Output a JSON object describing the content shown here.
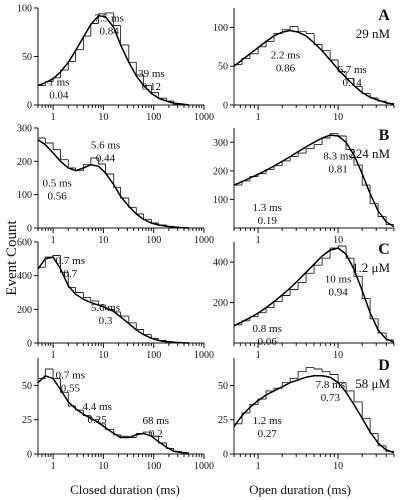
{
  "figure": {
    "ylabel": "Event Count",
    "xlabels": [
      "Closed duration (ms)",
      "Open duration (ms)"
    ]
  },
  "chart_data": [
    {
      "id": "A-closed",
      "type": "histogram",
      "panel": "A",
      "column": "closed",
      "xscale": "log",
      "xlim": [
        0.5,
        1000
      ],
      "ylim": [
        0,
        100
      ],
      "xticks": [
        {
          "value": 1,
          "label": "1"
        },
        {
          "value": 10,
          "label": "10"
        },
        {
          "value": 100,
          "label": "100"
        },
        {
          "value": 1000,
          "label": "1000"
        }
      ],
      "yticks": [
        {
          "value": 0,
          "label": "0"
        },
        {
          "value": 50,
          "label": "50"
        },
        {
          "value": 100,
          "label": "100"
        }
      ],
      "hist": {
        "x": [
          0.5,
          0.7,
          1,
          1.4,
          2,
          2.8,
          4,
          5.6,
          8,
          11,
          16,
          22,
          32,
          45,
          63,
          90,
          125,
          180,
          250,
          360,
          500
        ],
        "y": [
          20,
          24,
          28,
          36,
          45,
          57,
          71,
          84,
          94,
          95,
          82,
          62,
          44,
          31,
          20,
          13,
          7,
          4,
          1,
          0
        ]
      },
      "fit": {
        "x": [
          0.5,
          0.7,
          1,
          1.4,
          2,
          2.8,
          4,
          5.6,
          8,
          11,
          16,
          22,
          32,
          45,
          63,
          90,
          125,
          180,
          250,
          360,
          500
        ],
        "y": [
          20,
          23,
          27,
          34,
          44,
          56,
          70,
          83,
          92,
          91,
          80,
          62,
          44,
          30,
          20,
          12,
          7,
          4,
          2,
          1,
          0
        ]
      },
      "annotations": [
        {
          "lines": [
            "7.5 ms",
            "0.84"
          ],
          "x": 13,
          "y": 86
        },
        {
          "lines": [
            "1 ms",
            "0.04"
          ],
          "x": 1.3,
          "y": 20
        },
        {
          "lines": [
            "39 ms",
            "0.12"
          ],
          "x": 90,
          "y": 29
        }
      ]
    },
    {
      "id": "A-open",
      "type": "histogram",
      "panel": "A",
      "column": "open",
      "xscale": "log",
      "xlim": [
        0.5,
        50
      ],
      "ylim": [
        0,
        125
      ],
      "xticks": [
        {
          "value": 1,
          "label": "1"
        },
        {
          "value": 10,
          "label": "10"
        }
      ],
      "yticks": [
        {
          "value": 0,
          "label": "0"
        },
        {
          "value": 50,
          "label": "50"
        },
        {
          "value": 100,
          "label": "100"
        }
      ],
      "hist": {
        "x": [
          0.5,
          0.63,
          0.79,
          1,
          1.26,
          1.58,
          2,
          2.51,
          3.16,
          3.98,
          5.01,
          6.31,
          7.94,
          10,
          12.6,
          15.8,
          20,
          25.1,
          31.6,
          39.8,
          50
        ],
        "y": [
          52,
          60,
          66,
          75,
          82,
          92,
          97,
          101,
          95,
          92,
          78,
          70,
          58,
          43,
          34,
          24,
          15,
          9,
          5,
          2
        ]
      },
      "fit": {
        "x": [
          0.5,
          0.63,
          0.79,
          1,
          1.26,
          1.58,
          2,
          2.51,
          3.16,
          3.98,
          5.01,
          6.31,
          7.94,
          10,
          12.6,
          15.8,
          20,
          25.1,
          31.6,
          39.8,
          50
        ],
        "y": [
          50,
          58,
          66,
          74,
          82,
          89,
          94,
          96,
          94,
          89,
          80,
          70,
          58,
          46,
          35,
          25,
          16,
          10,
          6,
          3,
          1
        ]
      },
      "annotations": [
        {
          "lines": [
            "2.2 ms",
            "0.86"
          ],
          "x": 2.2,
          "y": 60
        },
        {
          "lines": [
            "6.7 ms",
            "0.14"
          ],
          "x": 15,
          "y": 41
        }
      ],
      "panel_label": "A",
      "concentration": "29 nM"
    },
    {
      "id": "B-closed",
      "type": "histogram",
      "panel": "B",
      "column": "closed",
      "xscale": "log",
      "xlim": [
        0.5,
        1000
      ],
      "ylim": [
        0,
        300
      ],
      "xticks": [
        {
          "value": 1,
          "label": "1"
        },
        {
          "value": 10,
          "label": "10"
        },
        {
          "value": 100,
          "label": "100"
        },
        {
          "value": 1000,
          "label": "1000"
        }
      ],
      "yticks": [
        {
          "value": 0,
          "label": "0"
        },
        {
          "value": 100,
          "label": "100"
        },
        {
          "value": 200,
          "label": "200"
        },
        {
          "value": 300,
          "label": "300"
        }
      ],
      "hist": {
        "x": [
          0.5,
          0.7,
          1,
          1.4,
          2,
          2.8,
          4,
          5.6,
          8,
          11,
          16,
          22,
          32,
          45,
          63,
          90,
          125,
          180,
          250,
          360,
          500
        ],
        "y": [
          270,
          255,
          235,
          205,
          180,
          172,
          190,
          210,
          192,
          162,
          122,
          90,
          62,
          42,
          26,
          15,
          9,
          5,
          2,
          1
        ]
      },
      "fit": {
        "x": [
          0.5,
          0.7,
          1,
          1.4,
          2,
          2.8,
          4,
          5.6,
          8,
          11,
          16,
          22,
          32,
          45,
          63,
          90,
          125,
          180,
          250,
          360,
          500
        ],
        "y": [
          265,
          250,
          225,
          200,
          180,
          172,
          180,
          190,
          185,
          165,
          130,
          95,
          65,
          42,
          26,
          15,
          9,
          5,
          3,
          1,
          0
        ]
      },
      "annotations": [
        {
          "lines": [
            "5.6 ms",
            "0.44"
          ],
          "x": 11,
          "y": 238
        },
        {
          "lines": [
            "0.5 ms",
            "0.56"
          ],
          "x": 1.2,
          "y": 125
        }
      ]
    },
    {
      "id": "B-open",
      "type": "histogram",
      "panel": "B",
      "column": "open",
      "xscale": "log",
      "xlim": [
        0.5,
        50
      ],
      "ylim": [
        0,
        350
      ],
      "xticks": [
        {
          "value": 1,
          "label": "1"
        },
        {
          "value": 10,
          "label": "10"
        }
      ],
      "yticks": [
        {
          "value": 100,
          "label": "100"
        },
        {
          "value": 200,
          "label": "200"
        },
        {
          "value": 300,
          "label": "300"
        }
      ],
      "hist": {
        "x": [
          0.5,
          0.63,
          0.79,
          1,
          1.26,
          1.58,
          2,
          2.51,
          3.16,
          3.98,
          5.01,
          6.31,
          7.94,
          10,
          12.6,
          15.8,
          20,
          25.1,
          31.6,
          39.8,
          50
        ],
        "y": [
          150,
          165,
          180,
          190,
          205,
          218,
          235,
          250,
          262,
          278,
          292,
          315,
          330,
          322,
          275,
          220,
          150,
          85,
          40,
          12
        ]
      },
      "fit": {
        "x": [
          0.5,
          0.63,
          0.79,
          1,
          1.26,
          1.58,
          2,
          2.51,
          3.16,
          3.98,
          5.01,
          6.31,
          7.94,
          10,
          12.6,
          15.8,
          20,
          25.1,
          31.6,
          39.8,
          50
        ],
        "y": [
          150,
          162,
          175,
          188,
          202,
          217,
          233,
          250,
          267,
          284,
          300,
          315,
          325,
          322,
          300,
          255,
          190,
          120,
          60,
          22,
          5
        ]
      },
      "annotations": [
        {
          "lines": [
            "8.3 ms",
            "0.81"
          ],
          "x": 10,
          "y": 240
        },
        {
          "lines": [
            "1.3 ms",
            "0.19"
          ],
          "x": 1.3,
          "y": 60
        }
      ],
      "panel_label": "B",
      "concentration": "224 nM"
    },
    {
      "id": "C-closed",
      "type": "histogram",
      "panel": "C",
      "column": "closed",
      "xscale": "log",
      "xlim": [
        0.5,
        1000
      ],
      "ylim": [
        0,
        600
      ],
      "xticks": [
        {
          "value": 1,
          "label": "1"
        },
        {
          "value": 10,
          "label": "10"
        },
        {
          "value": 100,
          "label": "100"
        },
        {
          "value": 1000,
          "label": "1000"
        }
      ],
      "yticks": [
        {
          "value": 0,
          "label": "0"
        },
        {
          "value": 200,
          "label": "200"
        },
        {
          "value": 400,
          "label": "400"
        },
        {
          "value": 600,
          "label": "600"
        }
      ],
      "hist": {
        "x": [
          0.5,
          0.7,
          1,
          1.4,
          2,
          2.8,
          4,
          5.6,
          8,
          11,
          16,
          22,
          32,
          45,
          63,
          90,
          125,
          180,
          250,
          360,
          500
        ],
        "y": [
          450,
          510,
          520,
          420,
          330,
          300,
          270,
          250,
          225,
          200,
          185,
          160,
          120,
          80,
          50,
          28,
          15,
          8,
          3,
          1
        ]
      },
      "fit": {
        "x": [
          0.5,
          0.7,
          1,
          1.4,
          2,
          2.8,
          4,
          5.6,
          8,
          11,
          16,
          22,
          32,
          45,
          63,
          90,
          125,
          180,
          250,
          360,
          500
        ],
        "y": [
          440,
          500,
          510,
          440,
          340,
          290,
          260,
          240,
          225,
          210,
          188,
          155,
          115,
          78,
          50,
          28,
          15,
          8,
          4,
          1,
          0
        ]
      },
      "annotations": [
        {
          "lines": [
            "0.7 ms",
            "0.7"
          ],
          "x": 2.2,
          "y": 470
        },
        {
          "lines": [
            "5.6 ms",
            "0.3"
          ],
          "x": 11,
          "y": 190
        }
      ]
    },
    {
      "id": "C-open",
      "type": "histogram",
      "panel": "C",
      "column": "open",
      "xscale": "log",
      "xlim": [
        0.5,
        50
      ],
      "ylim": [
        0,
        500
      ],
      "xticks": [
        {
          "value": 1,
          "label": "1"
        },
        {
          "value": 10,
          "label": "10"
        }
      ],
      "yticks": [
        {
          "value": 200,
          "label": "200"
        },
        {
          "value": 400,
          "label": "400"
        }
      ],
      "hist": {
        "x": [
          0.5,
          0.63,
          0.79,
          1,
          1.26,
          1.58,
          2,
          2.51,
          3.16,
          3.98,
          5.01,
          6.31,
          7.94,
          10,
          12.6,
          15.8,
          20,
          25.1,
          31.6,
          39.8,
          50
        ],
        "y": [
          90,
          110,
          130,
          150,
          175,
          205,
          235,
          265,
          300,
          345,
          385,
          420,
          470,
          480,
          420,
          330,
          220,
          120,
          50,
          15
        ]
      },
      "fit": {
        "x": [
          0.5,
          0.63,
          0.79,
          1,
          1.26,
          1.58,
          2,
          2.51,
          3.16,
          3.98,
          5.01,
          6.31,
          7.94,
          10,
          12.6,
          15.8,
          20,
          25.1,
          31.6,
          39.8,
          50
        ],
        "y": [
          85,
          105,
          125,
          148,
          175,
          205,
          238,
          272,
          310,
          350,
          390,
          430,
          460,
          470,
          440,
          365,
          260,
          150,
          65,
          20,
          4
        ]
      },
      "annotations": [
        {
          "lines": [
            "10 ms",
            "0.94"
          ],
          "x": 10,
          "y": 300
        },
        {
          "lines": [
            "0.8 ms",
            "0.06"
          ],
          "x": 1.3,
          "y": 55
        }
      ],
      "panel_label": "C",
      "concentration": "1.2 μM"
    },
    {
      "id": "D-closed",
      "type": "histogram",
      "panel": "D",
      "column": "closed",
      "xscale": "log",
      "xlim": [
        0.5,
        1000
      ],
      "ylim": [
        0,
        70
      ],
      "xticks": [
        {
          "value": 1,
          "label": "1"
        },
        {
          "value": 10,
          "label": "10"
        },
        {
          "value": 100,
          "label": "100"
        },
        {
          "value": 1000,
          "label": "1000"
        }
      ],
      "yticks": [
        {
          "value": 0,
          "label": "0"
        },
        {
          "value": 25,
          "label": "25"
        },
        {
          "value": 50,
          "label": "50"
        }
      ],
      "hist": {
        "x": [
          0.5,
          0.7,
          1,
          1.4,
          2,
          2.8,
          4,
          5.6,
          8,
          11,
          16,
          22,
          32,
          45,
          63,
          90,
          125,
          180,
          250,
          360,
          500
        ],
        "y": [
          55,
          62,
          55,
          45,
          35,
          32,
          28,
          25,
          22,
          18,
          14,
          13,
          12,
          15,
          16,
          13,
          8,
          4,
          2,
          1
        ]
      },
      "fit": {
        "x": [
          0.5,
          0.7,
          1,
          1.4,
          2,
          2.8,
          4,
          5.6,
          8,
          11,
          16,
          22,
          32,
          45,
          63,
          90,
          125,
          180,
          250,
          360,
          500
        ],
        "y": [
          52,
          57,
          55,
          47,
          38,
          33,
          29,
          26,
          23,
          19,
          15,
          12,
          12,
          14,
          15,
          13,
          9,
          5,
          2,
          1,
          0
        ]
      },
      "annotations": [
        {
          "lines": [
            "0.7 ms",
            "0.55"
          ],
          "x": 2.2,
          "y": 55
        },
        {
          "lines": [
            "4.4 ms",
            "0.25"
          ],
          "x": 7.5,
          "y": 32
        },
        {
          "lines": [
            "68 ms",
            "0.2"
          ],
          "x": 110,
          "y": 22
        }
      ]
    },
    {
      "id": "D-open",
      "type": "histogram",
      "panel": "D",
      "column": "open",
      "xscale": "log",
      "xlim": [
        0.5,
        50
      ],
      "ylim": [
        0,
        70
      ],
      "xticks": [
        {
          "value": 1,
          "label": "1"
        },
        {
          "value": 10,
          "label": "10"
        }
      ],
      "yticks": [
        {
          "value": 0,
          "label": "0"
        },
        {
          "value": 25,
          "label": "25"
        },
        {
          "value": 50,
          "label": "50"
        }
      ],
      "hist": {
        "x": [
          0.5,
          0.63,
          0.79,
          1,
          1.26,
          1.58,
          2,
          2.51,
          3.16,
          3.98,
          5.01,
          6.31,
          7.94,
          10,
          12.6,
          15.8,
          20,
          25.1,
          31.6,
          39.8,
          50
        ],
        "y": [
          22,
          30,
          36,
          40,
          46,
          48,
          52,
          55,
          60,
          63,
          62,
          60,
          58,
          52,
          46,
          38,
          26,
          15,
          6,
          2
        ]
      },
      "fit": {
        "x": [
          0.5,
          0.63,
          0.79,
          1,
          1.26,
          1.58,
          2,
          2.51,
          3.16,
          3.98,
          5.01,
          6.31,
          7.94,
          10,
          12.6,
          15.8,
          20,
          25.1,
          31.6,
          39.8,
          50
        ],
        "y": [
          20,
          28,
          34,
          39,
          43,
          46,
          49,
          52,
          54,
          56,
          57,
          57,
          56,
          52,
          45,
          36,
          26,
          16,
          8,
          3,
          1
        ]
      },
      "annotations": [
        {
          "lines": [
            "7.8 ms",
            "0.73"
          ],
          "x": 8,
          "y": 48
        },
        {
          "lines": [
            "1.2 ms",
            "0.27"
          ],
          "x": 1.3,
          "y": 22
        }
      ],
      "panel_label": "D",
      "concentration": "58 μM"
    }
  ]
}
